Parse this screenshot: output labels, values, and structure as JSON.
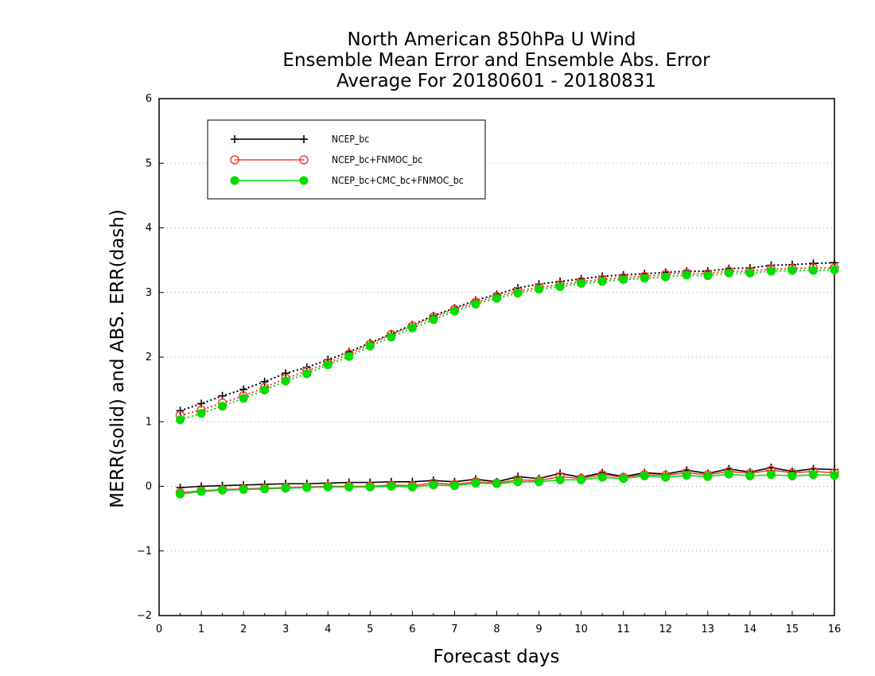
{
  "chart_data": {
    "type": "line",
    "title_lines": [
      "North American 850hPa U Wind",
      "Ensemble Mean Error and Ensemble Abs. Error",
      "Average For 20180601 - 20180831"
    ],
    "xlabel": "Forecast days",
    "ylabel": "MERR(solid) and ABS. ERR(dash)",
    "xlim": [
      0,
      16
    ],
    "ylim": [
      -2,
      6
    ],
    "xticks": [
      "0",
      "1",
      "2",
      "3",
      "4",
      "5",
      "6",
      "7",
      "8",
      "9",
      "10",
      "11",
      "12",
      "13",
      "14",
      "15",
      "16"
    ],
    "yticks": [
      "−2",
      "−1",
      "0",
      "1",
      "2",
      "3",
      "4",
      "5",
      "6"
    ],
    "grid": "horizontal dotted",
    "legend_position": "top-left",
    "x": [
      0.5,
      1,
      1.5,
      2,
      2.5,
      3,
      3.5,
      4,
      4.5,
      5,
      5.5,
      6,
      6.5,
      7,
      7.5,
      8,
      8.5,
      9,
      9.5,
      10,
      10.5,
      11,
      11.5,
      12,
      12.5,
      13,
      13.5,
      14,
      14.5,
      15,
      15.5,
      16
    ],
    "series": [
      {
        "name": "NCEP_bc",
        "color": "#000000",
        "marker": "plus",
        "merr": [
          -0.02,
          0.0,
          0.01,
          0.02,
          0.03,
          0.04,
          0.04,
          0.05,
          0.06,
          0.06,
          0.07,
          0.07,
          0.09,
          0.07,
          0.11,
          0.07,
          0.15,
          0.12,
          0.2,
          0.14,
          0.21,
          0.15,
          0.21,
          0.19,
          0.25,
          0.2,
          0.27,
          0.22,
          0.29,
          0.23,
          0.27,
          0.26
        ],
        "abs_err": [
          1.17,
          1.28,
          1.4,
          1.5,
          1.62,
          1.75,
          1.84,
          1.96,
          2.08,
          2.22,
          2.36,
          2.5,
          2.64,
          2.76,
          2.88,
          2.97,
          3.07,
          3.13,
          3.17,
          3.21,
          3.25,
          3.27,
          3.29,
          3.31,
          3.33,
          3.33,
          3.37,
          3.38,
          3.42,
          3.43,
          3.45,
          3.46
        ]
      },
      {
        "name": "NCEP_bc+FNMOC_bc",
        "color": "#ff3b30",
        "marker": "open-circle",
        "merr": [
          -0.1,
          -0.07,
          -0.05,
          -0.04,
          -0.03,
          -0.02,
          -0.01,
          0.0,
          0.0,
          0.0,
          0.02,
          0.01,
          0.05,
          0.03,
          0.07,
          0.05,
          0.1,
          0.09,
          0.15,
          0.12,
          0.18,
          0.14,
          0.18,
          0.17,
          0.21,
          0.18,
          0.23,
          0.2,
          0.25,
          0.21,
          0.23,
          0.21
        ],
        "abs_err": [
          1.1,
          1.18,
          1.29,
          1.4,
          1.53,
          1.67,
          1.78,
          1.91,
          2.05,
          2.2,
          2.35,
          2.48,
          2.62,
          2.74,
          2.85,
          2.94,
          3.02,
          3.08,
          3.12,
          3.17,
          3.2,
          3.23,
          3.25,
          3.28,
          3.3,
          3.29,
          3.33,
          3.33,
          3.36,
          3.37,
          3.38,
          3.38
        ]
      },
      {
        "name": "NCEP_bc+CMC_bc+FNMOC_bc",
        "color": "#00dd00",
        "marker": "filled-circle",
        "merr": [
          -0.12,
          -0.08,
          -0.06,
          -0.05,
          -0.04,
          -0.03,
          -0.02,
          -0.01,
          -0.01,
          -0.01,
          0.0,
          -0.01,
          0.02,
          0.01,
          0.05,
          0.04,
          0.07,
          0.07,
          0.1,
          0.1,
          0.14,
          0.12,
          0.16,
          0.14,
          0.17,
          0.15,
          0.19,
          0.16,
          0.18,
          0.16,
          0.18,
          0.17
        ],
        "abs_err": [
          1.03,
          1.13,
          1.24,
          1.36,
          1.49,
          1.63,
          1.74,
          1.88,
          2.01,
          2.17,
          2.31,
          2.45,
          2.58,
          2.71,
          2.82,
          2.91,
          2.99,
          3.05,
          3.09,
          3.14,
          3.17,
          3.2,
          3.22,
          3.24,
          3.27,
          3.26,
          3.3,
          3.3,
          3.33,
          3.34,
          3.34,
          3.35
        ]
      }
    ]
  }
}
